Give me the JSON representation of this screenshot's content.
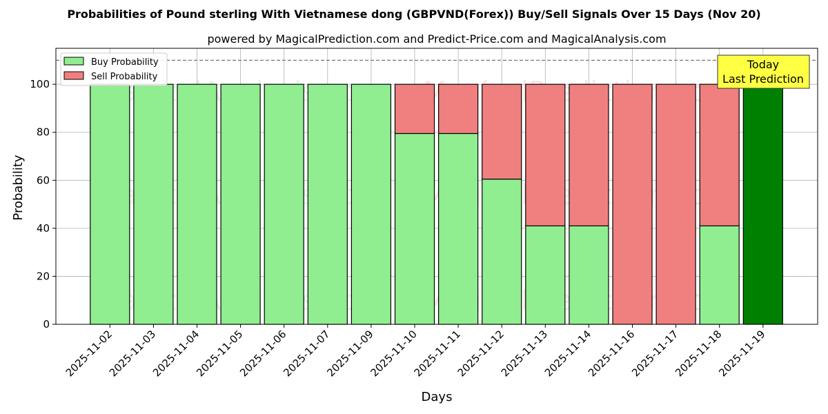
{
  "chart_data": {
    "type": "bar",
    "title": "Probabilities of Pound sterling With Vietnamese dong (GBPVND(Forex)) Buy/Sell Signals Over 15 Days (Nov 20)",
    "subtitle": "powered by MagicalPrediction.com and Predict-Price.com and MagicalAnalysis.com",
    "xlabel": "Days",
    "ylabel": "Probability",
    "ylim": [
      0,
      115
    ],
    "yticks": [
      0,
      20,
      40,
      60,
      80,
      100
    ],
    "reference_line": 110,
    "grid": true,
    "legend_position": "top-left",
    "categories": [
      "2025-11-02",
      "2025-11-03",
      "2025-11-04",
      "2025-11-05",
      "2025-11-06",
      "2025-11-07",
      "2025-11-09",
      "2025-11-10",
      "2025-11-11",
      "2025-11-12",
      "2025-11-13",
      "2025-11-14",
      "2025-11-16",
      "2025-11-17",
      "2025-11-18",
      "2025-11-19"
    ],
    "series": [
      {
        "name": "Buy Probability",
        "color": "#90EE90",
        "values": [
          100,
          100,
          100,
          100,
          100,
          100,
          100,
          79.5,
          79.5,
          60.5,
          41,
          41,
          0,
          0,
          41,
          100
        ]
      },
      {
        "name": "Sell Probability",
        "color": "#F08080",
        "values": [
          0,
          0,
          0,
          0,
          0,
          0,
          0,
          20.5,
          20.5,
          39.5,
          59,
          59,
          100,
          100,
          59,
          0
        ]
      }
    ],
    "highlight": {
      "category": "2025-11-19",
      "color": "#008000",
      "label_line1": "Today",
      "label_line2": "Last Prediction",
      "box_color": "#FFFF44"
    },
    "watermarks": [
      "MagicalAnalysis.com",
      "MagicalPrediction.com"
    ]
  }
}
